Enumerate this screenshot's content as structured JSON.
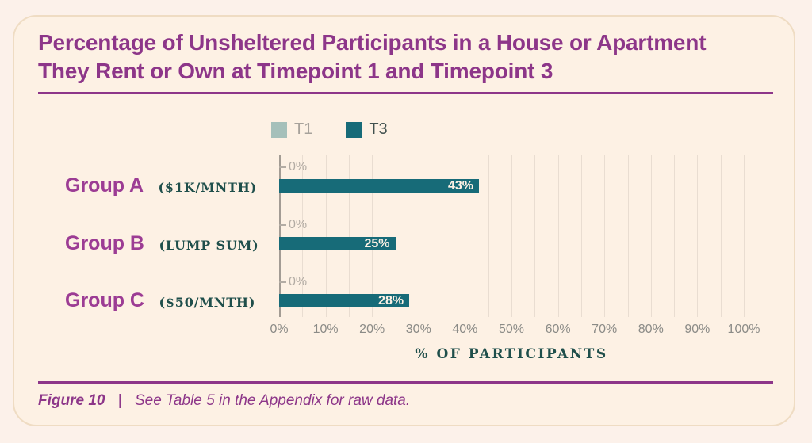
{
  "title": {
    "line1": "Percentage of Unsheltered Participants in a House or Apartment",
    "line2": "They Rent or Own at Timepoint 1 and Timepoint 3"
  },
  "legend": {
    "items": [
      {
        "label": "T1",
        "color": "#a5c0ba"
      },
      {
        "label": "T3",
        "color": "#176b78"
      }
    ]
  },
  "chart_data": {
    "type": "bar",
    "orientation": "horizontal",
    "title": "Percentage of Unsheltered Participants in a House or Apartment They Rent or Own at Timepoint 1 and Timepoint 3",
    "categories": [
      "Group A",
      "Group B",
      "Group C"
    ],
    "category_qualifiers": [
      "($1K/MNTH)",
      "(LUMP SUM)",
      "($50/MNTH)"
    ],
    "series": [
      {
        "name": "T1",
        "values": [
          0,
          0,
          0
        ]
      },
      {
        "name": "T3",
        "values": [
          43,
          25,
          28
        ]
      }
    ],
    "t1_value_labels": [
      "0%",
      "0%",
      "0%"
    ],
    "t3_value_labels": [
      "43%",
      "25%",
      "28%"
    ],
    "xlabel": "% OF PARTICIPANTS",
    "x_ticks": [
      "0%",
      "10%",
      "20%",
      "30%",
      "40%",
      "50%",
      "60%",
      "70%",
      "80%",
      "90%",
      "100%"
    ],
    "xlim": [
      0,
      100
    ],
    "gridlines": "vertical every 5%",
    "legend_position": "top-left of plot"
  },
  "footer": {
    "figure_label": "Figure 10",
    "separator": "|",
    "caption": "See Table 5 in the Appendix for raw data."
  },
  "colors": {
    "background": "#fcf1ea",
    "card_background": "#fdf1e4",
    "card_border": "#efdcc3",
    "title_purple": "#8d3689",
    "group_purple": "#9c3c94",
    "bar_teal": "#176b78",
    "t1_swatch": "#a5c0ba",
    "serif_teal": "#1f4f4b",
    "tick_gray": "#8b8b87",
    "zero_gray": "#b3aca4"
  }
}
